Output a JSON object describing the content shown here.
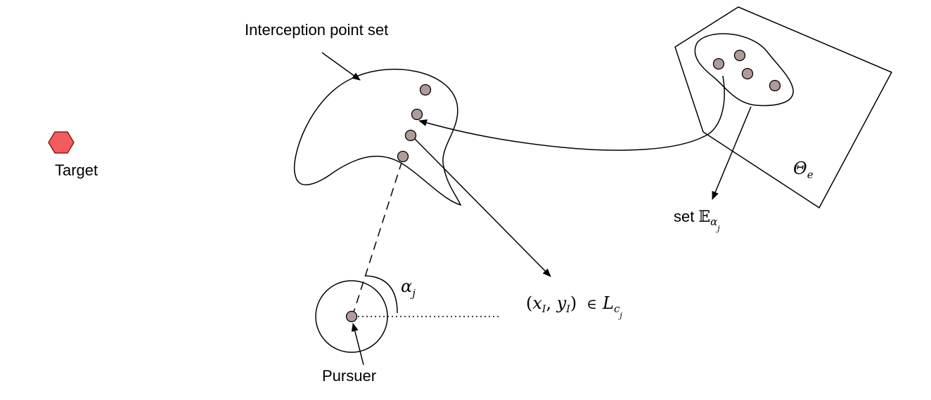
{
  "labels": {
    "interception_point_set": "Interception point set",
    "target": "Target",
    "pursuer": "Pursuer",
    "set_prefix": "set",
    "set_symbol": "𝔼",
    "set_sub_alpha": "α",
    "set_sub_j": "j",
    "theta_symbol": "Θ",
    "theta_sub": "e",
    "alpha_symbol": "α",
    "alpha_sub": "j",
    "point_open": "(",
    "point_x": "x",
    "point_x_sub": "I",
    "point_comma": ", ",
    "point_y": "y",
    "point_y_sub": "I",
    "point_close": ")",
    "element_of": "∈",
    "line_symbol": "L",
    "line_sub_c": "c",
    "line_sub_j": "j"
  },
  "colors": {
    "point_fill": "#b09a9a",
    "target_fill": "#f25c5c",
    "target_stroke": "#8b1a1a",
    "line": "#000000"
  }
}
